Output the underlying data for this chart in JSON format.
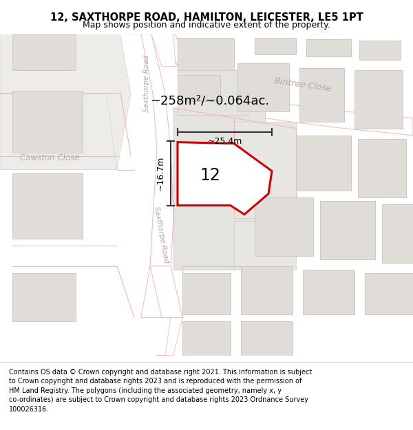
{
  "title_line1": "12, SAXTHORPE ROAD, HAMILTON, LEICESTER, LE5 1PT",
  "title_line2": "Map shows position and indicative extent of the property.",
  "footer_text": "Contains OS data © Crown copyright and database right 2021. This information is subject to Crown copyright and database rights 2023 and is reproduced with the permission of HM Land Registry. The polygons (including the associated geometry, namely x, y co-ordinates) are subject to Crown copyright and database rights 2023 Ordnance Survey 100026316.",
  "bg_color": "#f7f6f4",
  "road_line_color": "#f0b8b8",
  "building_fill": "#e0ddd8",
  "building_stroke": "#ccc9c4",
  "plot_fill": "#e8e6e2",
  "plot_stroke": "#c0bdb8",
  "property_color": "#cc0000",
  "property_bg": "#ffffff",
  "dim_color": "#333333",
  "street_label_color": "#b8a8a8",
  "area_text": "~258m²/~0.064ac.",
  "number_text": "12",
  "dim_width": "~25.4m",
  "dim_height": "~16.7m"
}
